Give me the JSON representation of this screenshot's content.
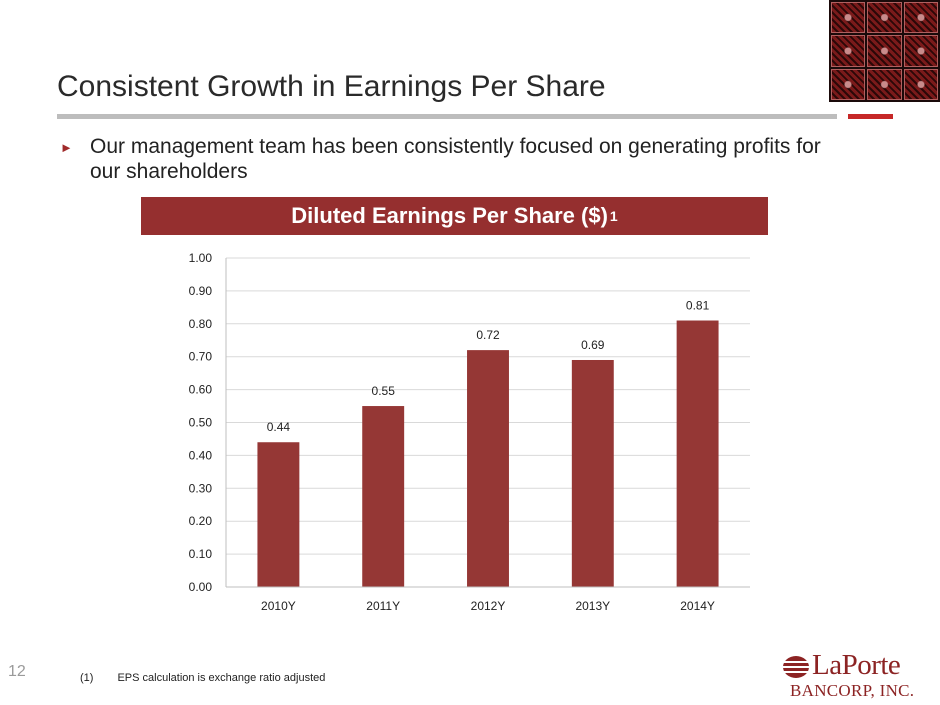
{
  "slide": {
    "title": "Consistent Growth in Earnings Per Share",
    "bullet": "Our management team has been consistently focused on generating profits for our shareholders",
    "bullet_icon": "triangle-bullet-icon",
    "banner_title": "Diluted Earnings Per Share ($)",
    "banner_superscript": "1",
    "slide_number": "12",
    "footnote_number": "(1)",
    "footnote_text": "EPS calculation is exchange ratio adjusted",
    "logo_name": "LaPorte",
    "logo_subtitle": "BANCORP, INC.",
    "accent_color": "#952f2f",
    "rule_color": "#bdbdbd",
    "rule_accent_color": "#c62828"
  },
  "chart_data": {
    "type": "bar",
    "categories": [
      "2010Y",
      "2011Y",
      "2012Y",
      "2013Y",
      "2014Y"
    ],
    "values": [
      0.44,
      0.55,
      0.72,
      0.69,
      0.81
    ],
    "value_labels": [
      "0.44",
      "0.55",
      "0.72",
      "0.69",
      "0.81"
    ],
    "ylim": [
      0,
      1.0
    ],
    "yticks": [
      0,
      0.1,
      0.2,
      0.3,
      0.4,
      0.5,
      0.6,
      0.7,
      0.8,
      0.9,
      1.0
    ],
    "ytick_labels": [
      "0.00",
      "0.10",
      "0.20",
      "0.30",
      "0.40",
      "0.50",
      "0.60",
      "0.70",
      "0.80",
      "0.90",
      "1.00"
    ],
    "grid": true,
    "legend": "none",
    "bar_color": "#953735",
    "grid_color": "#d9d9d9"
  }
}
